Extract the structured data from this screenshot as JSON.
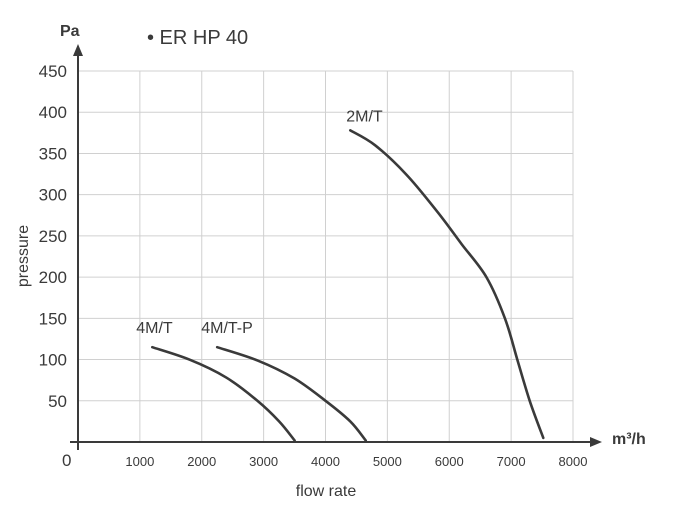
{
  "chart_data": {
    "type": "line",
    "title": "• ER HP 40",
    "xlabel": "flow rate",
    "ylabel": "pressure",
    "x_unit": "m³/h",
    "y_unit": "Pa",
    "origin_label": "0",
    "xlim": [
      0,
      8000
    ],
    "ylim": [
      0,
      450
    ],
    "x_ticks": [
      1000,
      2000,
      3000,
      4000,
      5000,
      6000,
      7000,
      8000
    ],
    "y_ticks": [
      50,
      100,
      150,
      200,
      250,
      300,
      350,
      400,
      450
    ],
    "grid": true,
    "series": [
      {
        "name": "4M/T",
        "points": [
          [
            1200,
            115
          ],
          [
            1800,
            100
          ],
          [
            2400,
            78
          ],
          [
            2900,
            50
          ],
          [
            3250,
            25
          ],
          [
            3500,
            2
          ]
        ]
      },
      {
        "name": "4M/T-P",
        "points": [
          [
            2250,
            115
          ],
          [
            2900,
            99
          ],
          [
            3500,
            77
          ],
          [
            4000,
            50
          ],
          [
            4400,
            25
          ],
          [
            4650,
            2
          ]
        ]
      },
      {
        "name": "2M/T",
        "points": [
          [
            4400,
            378
          ],
          [
            4800,
            360
          ],
          [
            5300,
            325
          ],
          [
            5800,
            280
          ],
          [
            6200,
            240
          ],
          [
            6600,
            200
          ],
          [
            6900,
            150
          ],
          [
            7100,
            100
          ],
          [
            7300,
            50
          ],
          [
            7520,
            5
          ]
        ]
      }
    ]
  }
}
